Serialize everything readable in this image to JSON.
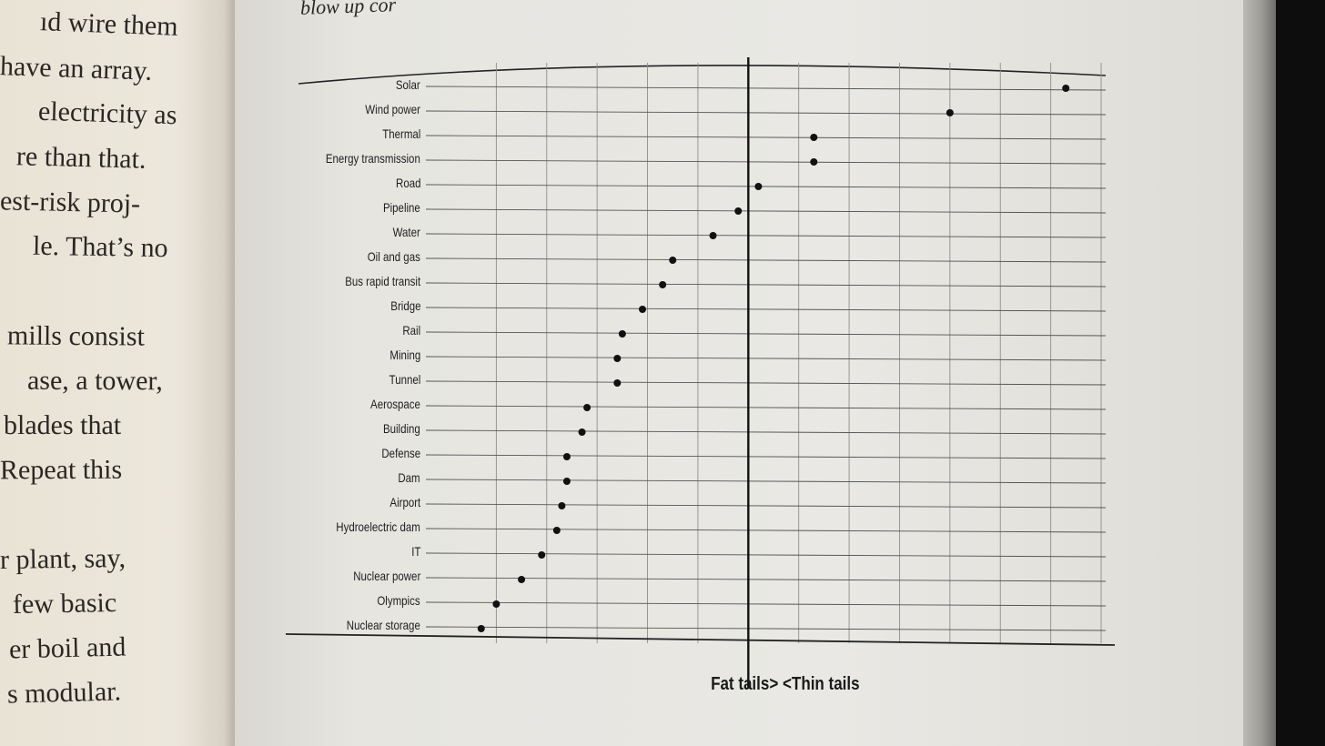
{
  "book": {
    "top_text": "blow up cor",
    "left_page_lines": [
      "ıd wire them",
      "have an array.",
      "electricity as",
      "re than that.",
      "est-risk proj-",
      "le. That’s no",
      "",
      "mills consist",
      "ase, a tower,",
      "blades that",
      "Repeat this",
      "",
      "r plant, say,",
      "few basic",
      "er boil and",
      "s modular."
    ]
  },
  "chart_data": {
    "type": "scatter",
    "title": "",
    "xlabel": "",
    "ylabel": "",
    "categories": [
      "Solar",
      "Wind power",
      "Thermal",
      "Energy transmission",
      "Road",
      "Pipeline",
      "Water",
      "Oil and gas",
      "Bus rapid transit",
      "Bridge",
      "Rail",
      "Mining",
      "Tunnel",
      "Aerospace",
      "Building",
      "Defense",
      "Dam",
      "Airport",
      "Hydroelectric dam",
      "IT",
      "Nuclear power",
      "Olympics",
      "Nuclear storage"
    ],
    "values": [
      12.3,
      10.0,
      7.3,
      7.3,
      6.2,
      5.8,
      5.3,
      4.5,
      4.3,
      3.9,
      3.5,
      3.4,
      3.4,
      2.8,
      2.7,
      2.4,
      2.4,
      2.3,
      2.2,
      1.9,
      1.5,
      1.0,
      0.7
    ],
    "xlim": [
      0,
      13
    ],
    "threshold": 6.0,
    "grid": true,
    "gridline_count": 13,
    "annotations": {
      "left": "Fat tails",
      "right": "Thin tails"
    }
  }
}
